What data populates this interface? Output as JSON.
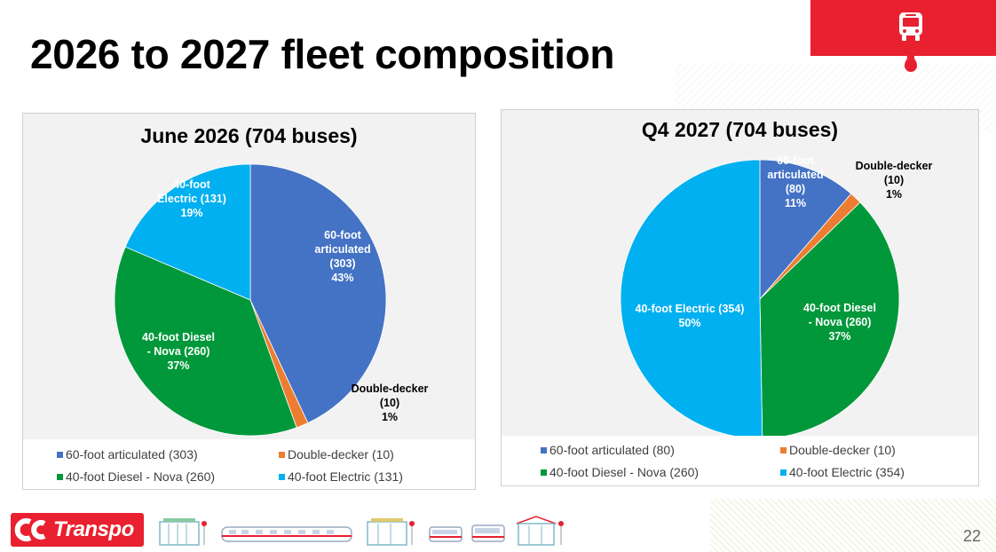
{
  "page": {
    "title": "2026 to 2027 fleet composition",
    "page_number": "22",
    "logo_text": "Transpo",
    "logo_mark": "OC",
    "accent": "#e8202f"
  },
  "icons": {
    "corner": "bus-icon",
    "footer": [
      "station-icon",
      "train-icon",
      "station-icon",
      "bus-icon",
      "bus-icon",
      "station-icon"
    ]
  },
  "chart_data": [
    {
      "type": "pie",
      "title": "June 2026 (704 buses)",
      "legend_position": "bottom",
      "slices": [
        {
          "name": "60-foot articulated",
          "value": 303,
          "percent": 43,
          "color": "#4472c4",
          "label_lines": [
            "60-foot",
            "articulated",
            "(303)",
            "43%"
          ]
        },
        {
          "name": "Double-decker",
          "value": 10,
          "percent": 1,
          "color": "#ed7d31",
          "label_lines": [
            "Double-decker",
            "(10)",
            "1%"
          ]
        },
        {
          "name": "40-foot Diesel - Nova",
          "value": 260,
          "percent": 37,
          "color": "#00983a",
          "label_lines": [
            "40-foot Diesel",
            "- Nova (260)",
            "37%"
          ]
        },
        {
          "name": "40-foot Electric",
          "value": 131,
          "percent": 19,
          "color": "#00b0f0",
          "label_lines": [
            "40-foot",
            "Electric (131)",
            "19%"
          ]
        }
      ],
      "legend": [
        "60-foot articulated (303)",
        "Double-decker (10)",
        "40-foot Diesel - Nova (260)",
        "40-foot Electric (131)"
      ]
    },
    {
      "type": "pie",
      "title": "Q4 2027 (704 buses)",
      "legend_position": "bottom",
      "slices": [
        {
          "name": "60-foot articulated",
          "value": 80,
          "percent": 11,
          "color": "#4472c4",
          "label_lines": [
            "60-foot",
            "articulated",
            "(80)",
            "11%"
          ]
        },
        {
          "name": "Double-decker",
          "value": 10,
          "percent": 1,
          "color": "#ed7d31",
          "label_lines": [
            "Double-decker",
            "(10)",
            "1%"
          ]
        },
        {
          "name": "40-foot Diesel - Nova",
          "value": 260,
          "percent": 37,
          "color": "#00983a",
          "label_lines": [
            "40-foot Diesel",
            "- Nova (260)",
            "37%"
          ]
        },
        {
          "name": "40-foot Electric",
          "value": 354,
          "percent": 50,
          "color": "#00b0f0",
          "label_lines": [
            "40-foot Electric (354)",
            "50%"
          ]
        }
      ],
      "legend": [
        "60-foot articulated (80)",
        "Double-decker (10)",
        "40-foot Diesel - Nova (260)",
        "40-foot Electric (354)"
      ]
    }
  ]
}
